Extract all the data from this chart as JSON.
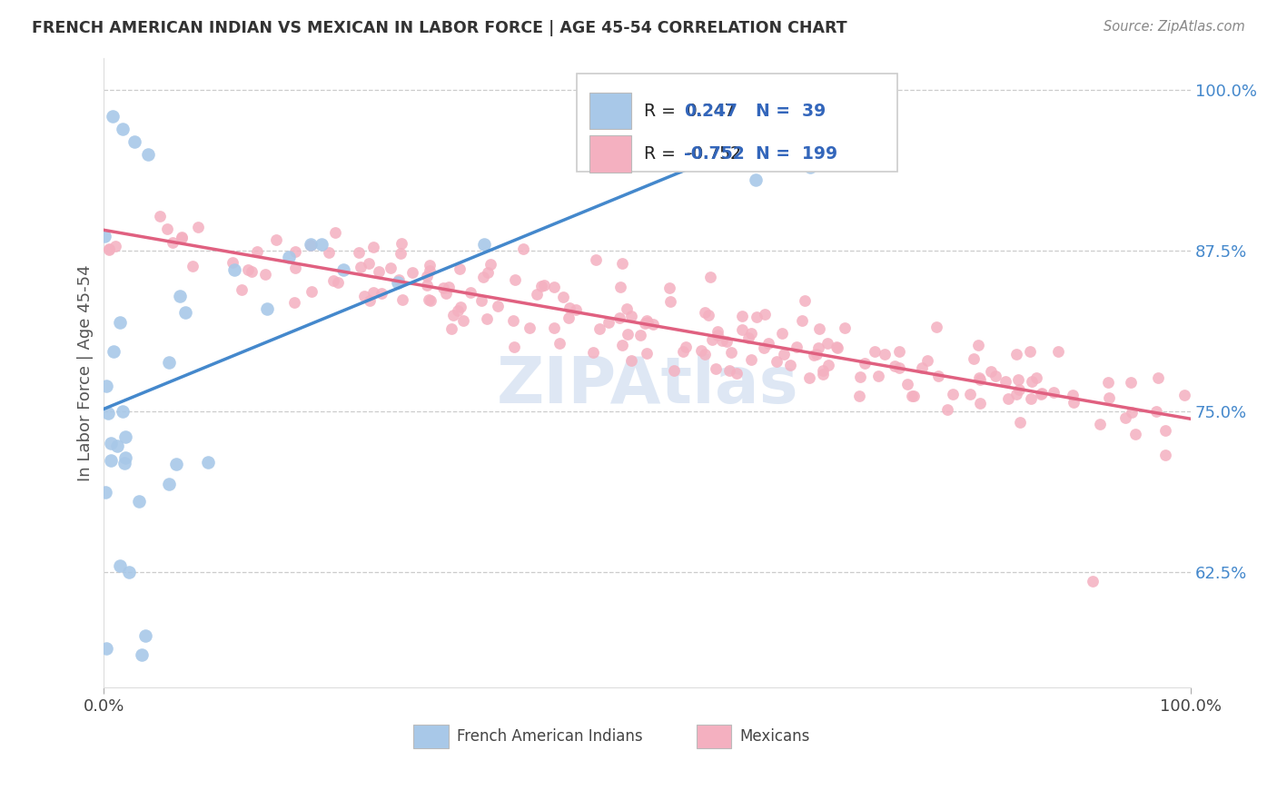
{
  "title": "FRENCH AMERICAN INDIAN VS MEXICAN IN LABOR FORCE | AGE 45-54 CORRELATION CHART",
  "source_text": "Source: ZipAtlas.com",
  "ylabel": "In Labor Force | Age 45-54",
  "r_blue": 0.247,
  "r_pink": -0.752,
  "n_blue": 39,
  "n_pink": 199,
  "blue_fill": "#A8C8E8",
  "pink_fill": "#F4B0C0",
  "blue_line": "#4488CC",
  "pink_line": "#E06080",
  "blue_text": "#3366BB",
  "pink_text": "#E06080",
  "black_text": "#222222",
  "grid_color": "#CCCCCC",
  "title_color": "#333333",
  "source_color": "#888888",
  "ylabel_color": "#555555",
  "watermark_color": "#C8D8EE",
  "ytick_color": "#4488CC",
  "xlim": [
    0.0,
    1.0
  ],
  "ylim": [
    0.535,
    1.025
  ],
  "yticks": [
    0.625,
    0.75,
    0.875,
    1.0
  ],
  "ytick_labels": [
    "62.5%",
    "75.0%",
    "87.5%",
    "100.0%"
  ]
}
